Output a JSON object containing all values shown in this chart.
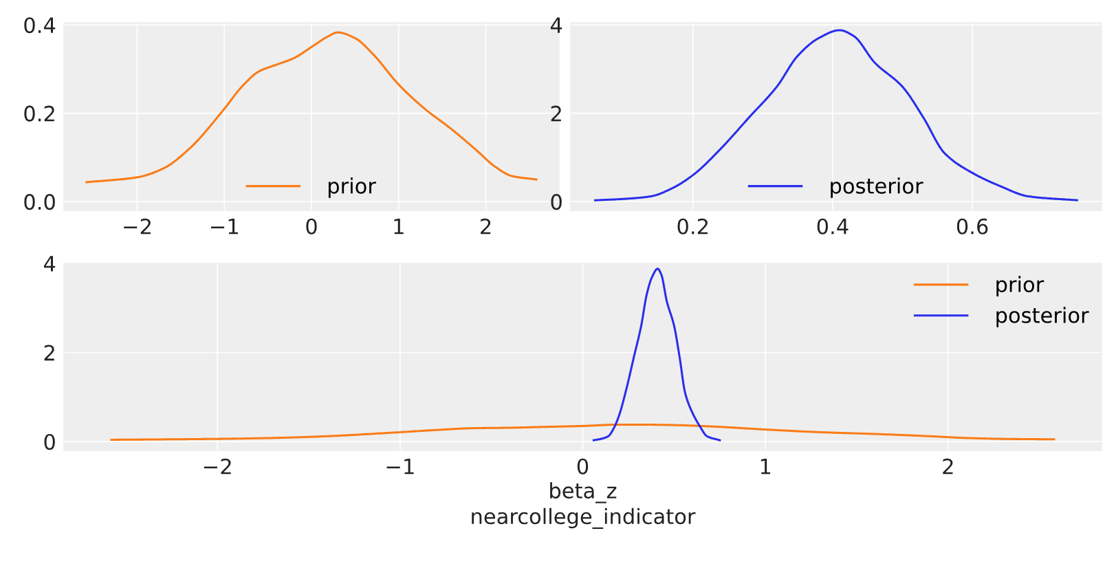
{
  "chart_data": [
    {
      "type": "line",
      "grid": true,
      "legend": "bottom",
      "xlim": [
        -2.84,
        2.84
      ],
      "ylim": [
        -0.02,
        0.405
      ],
      "xticks": [
        -2,
        -1,
        0,
        1,
        2
      ],
      "yticks": [
        {
          "value": 0,
          "label": "0.0"
        },
        0.2,
        0.4
      ],
      "series": [
        {
          "name": "prior",
          "color": "#fa7c17",
          "x": [
            -2.58,
            -2.0,
            -1.7,
            -1.4,
            -1.0,
            -0.8,
            -0.6,
            -0.4,
            -0.2,
            0,
            0.2,
            0.3,
            0.5,
            0.7,
            1.0,
            1.3,
            1.6,
            1.9,
            2.1,
            2.3,
            2.58
          ],
          "values": [
            0.044,
            0.055,
            0.075,
            0.12,
            0.21,
            0.26,
            0.295,
            0.31,
            0.325,
            0.35,
            0.375,
            0.383,
            0.37,
            0.335,
            0.265,
            0.21,
            0.165,
            0.115,
            0.08,
            0.058,
            0.05
          ]
        }
      ]
    },
    {
      "type": "line",
      "grid": true,
      "legend": "bottom",
      "xlim": [
        0.025,
        0.785
      ],
      "ylim": [
        -0.2,
        4.05
      ],
      "xticks": [
        0.2,
        0.4,
        0.6
      ],
      "yticks": [
        0,
        2,
        4
      ],
      "series": [
        {
          "name": "posterior",
          "color": "#2a2eec",
          "x": [
            0.06,
            0.1,
            0.14,
            0.17,
            0.2,
            0.24,
            0.28,
            0.32,
            0.35,
            0.38,
            0.41,
            0.43,
            0.46,
            0.5,
            0.53,
            0.56,
            0.6,
            0.64,
            0.68,
            0.75
          ],
          "values": [
            0.03,
            0.06,
            0.12,
            0.3,
            0.6,
            1.2,
            1.9,
            2.6,
            3.3,
            3.7,
            3.88,
            3.75,
            3.15,
            2.6,
            1.9,
            1.1,
            0.65,
            0.35,
            0.12,
            0.03
          ]
        }
      ]
    },
    {
      "type": "line",
      "grid": true,
      "legend": "top right",
      "xlabel": "beta_z\nnearcollege_indicator",
      "xlim": [
        -2.84,
        2.84
      ],
      "ylim": [
        -0.2,
        4.0
      ],
      "xticks": [
        -2,
        -1,
        0,
        1,
        2
      ],
      "yticks": [
        0,
        2,
        4
      ],
      "series": [
        {
          "name": "prior",
          "color": "#fa7c17",
          "x": [
            -2.58,
            -2.0,
            -1.7,
            -1.4,
            -1.0,
            -0.8,
            -0.6,
            -0.4,
            -0.2,
            0,
            0.2,
            0.3,
            0.5,
            0.7,
            1.0,
            1.3,
            1.6,
            1.9,
            2.1,
            2.3,
            2.58
          ],
          "values": [
            0.04,
            0.06,
            0.08,
            0.12,
            0.21,
            0.26,
            0.3,
            0.31,
            0.33,
            0.35,
            0.38,
            0.38,
            0.37,
            0.34,
            0.27,
            0.21,
            0.17,
            0.12,
            0.08,
            0.06,
            0.05
          ]
        },
        {
          "name": "posterior",
          "color": "#2a2eec",
          "x": [
            0.06,
            0.1,
            0.14,
            0.17,
            0.2,
            0.24,
            0.28,
            0.32,
            0.35,
            0.38,
            0.41,
            0.43,
            0.46,
            0.5,
            0.53,
            0.56,
            0.6,
            0.64,
            0.68,
            0.75
          ],
          "values": [
            0.03,
            0.06,
            0.12,
            0.3,
            0.6,
            1.2,
            1.9,
            2.6,
            3.3,
            3.7,
            3.88,
            3.75,
            3.15,
            2.6,
            1.9,
            1.1,
            0.65,
            0.35,
            0.12,
            0.03
          ]
        }
      ]
    }
  ]
}
